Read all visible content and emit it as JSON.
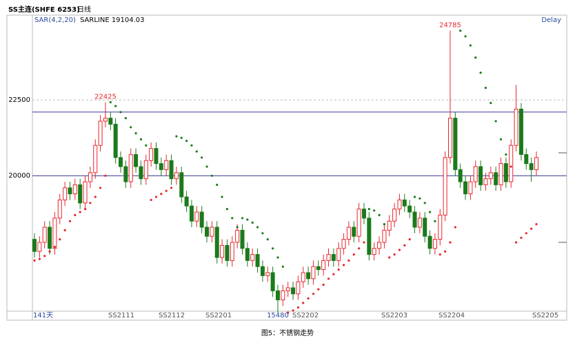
{
  "chart_data": {
    "type": "candlestick",
    "symbol": "SS主连(SHFE 6253)",
    "period": "日线",
    "indicator": "SAR(4,2,20)",
    "indicator_value": "SARLINE 19104.03",
    "status": "Delay",
    "bar_count": "141天",
    "contract_labels": [
      "SS2111",
      "SS2112",
      "SS2201",
      "SS2202",
      "SS2203",
      "SS2204",
      "SS2205"
    ],
    "caption": "图5：不锈钢走势",
    "ylim": [
      15300,
      25300
    ],
    "yticks": [
      20000,
      22500
    ],
    "hlines": [
      22100,
      20000
    ],
    "up_color": "#e8242b",
    "down_color": "#1b7a1b",
    "hline_color": "#3a3a9a",
    "open": [
      17900,
      17500,
      17800,
      18300,
      17600,
      18600,
      19200,
      19600,
      19400,
      19700,
      19100,
      19800,
      20100,
      21000,
      21800,
      21900,
      21700,
      20600,
      20300,
      19800,
      20700,
      20300,
      19900,
      20500,
      20900,
      20400,
      20200,
      20500,
      19900,
      20100,
      19300,
      19000,
      18500,
      18800,
      18300,
      18000,
      18300,
      17300,
      17700,
      17200,
      17800,
      18200,
      17600,
      17200,
      17400,
      17000,
      16700,
      16800,
      16200,
      15900,
      16200,
      16300,
      16100,
      16500,
      16800,
      16600,
      17000,
      16900,
      17200,
      17400,
      17200,
      17600,
      17900,
      18300,
      18000,
      18900,
      18600,
      17400,
      17600,
      17800,
      18200,
      18500,
      18900,
      19200,
      19000,
      18800,
      18300,
      18600,
      18000,
      17600,
      17900,
      18700,
      20600,
      21900,
      20200,
      19800,
      19400,
      19800,
      20300,
      19700,
      19900,
      20100,
      19700,
      20400,
      19800,
      21000,
      22200,
      20700,
      20400,
      20200
    ],
    "high": [
      18100,
      18000,
      18500,
      18500,
      18800,
      19400,
      19800,
      19800,
      19900,
      19900,
      20000,
      20300,
      21200,
      22000,
      22425,
      22100,
      21900,
      20800,
      20500,
      20900,
      20900,
      20500,
      20700,
      21100,
      21100,
      20600,
      20700,
      20700,
      20300,
      20300,
      19500,
      19200,
      19000,
      19000,
      18500,
      18500,
      18500,
      17900,
      17900,
      18000,
      18400,
      18400,
      17800,
      17600,
      17600,
      17200,
      17000,
      17000,
      16400,
      16400,
      16500,
      16500,
      16700,
      17000,
      17000,
      17200,
      17200,
      17400,
      17600,
      17600,
      17800,
      18100,
      18500,
      18500,
      19100,
      19100,
      18800,
      17800,
      18000,
      18400,
      18700,
      19100,
      19400,
      19400,
      19200,
      19000,
      18800,
      18800,
      18200,
      18100,
      18900,
      20800,
      24785,
      22100,
      20400,
      20000,
      20000,
      20500,
      20500,
      20100,
      20300,
      20300,
      20600,
      20600,
      21200,
      23000,
      22400,
      20900,
      20600,
      20800
    ],
    "low": [
      17300,
      17300,
      17600,
      17400,
      17400,
      18400,
      19000,
      19200,
      19200,
      18900,
      18900,
      19600,
      19900,
      20800,
      21600,
      21500,
      20400,
      20100,
      19600,
      19600,
      20100,
      19700,
      19700,
      20300,
      20200,
      20000,
      20000,
      19700,
      19700,
      19100,
      18800,
      18300,
      18300,
      18100,
      17800,
      17800,
      17100,
      17100,
      17000,
      17000,
      17600,
      17400,
      17000,
      17000,
      16800,
      16500,
      16500,
      16000,
      15480,
      15700,
      16000,
      15900,
      15900,
      16300,
      16400,
      16400,
      16700,
      16700,
      17000,
      17000,
      17000,
      17400,
      17700,
      17800,
      17800,
      18400,
      17200,
      17200,
      17400,
      17600,
      18000,
      18300,
      18700,
      18800,
      18600,
      18100,
      18100,
      17800,
      17400,
      17400,
      17700,
      18500,
      20400,
      20000,
      19600,
      19200,
      19200,
      19600,
      19500,
      19500,
      19700,
      19500,
      19500,
      19600,
      19600,
      20800,
      20500,
      20200,
      19800,
      20000
    ],
    "close": [
      17500,
      17800,
      18300,
      17600,
      18600,
      19200,
      19600,
      19400,
      19700,
      19100,
      19800,
      20100,
      21000,
      21800,
      21900,
      21700,
      20600,
      20300,
      19800,
      20700,
      20300,
      19900,
      20500,
      20900,
      20400,
      20200,
      20500,
      19900,
      20100,
      19300,
      19000,
      18500,
      18800,
      18300,
      18000,
      18300,
      17300,
      17700,
      17200,
      17800,
      18200,
      17600,
      17200,
      17400,
      17000,
      16700,
      16800,
      16200,
      15900,
      16200,
      16300,
      16100,
      16500,
      16800,
      16600,
      17000,
      16900,
      17200,
      17400,
      17200,
      17600,
      17900,
      18300,
      18000,
      18900,
      18600,
      17400,
      17600,
      17800,
      18200,
      18500,
      18900,
      19200,
      19000,
      18800,
      18300,
      18600,
      18000,
      17600,
      17900,
      18700,
      20600,
      21900,
      20200,
      19800,
      19400,
      19800,
      20300,
      19700,
      19900,
      20100,
      19700,
      20400,
      19800,
      21000,
      22200,
      20700,
      20400,
      20200,
      20600
    ],
    "sar": [
      17200,
      17250,
      17350,
      17500,
      17650,
      17900,
      18200,
      18500,
      18700,
      18800,
      18900,
      19100,
      19300,
      19600,
      20000,
      22425,
      22300,
      22100,
      21900,
      21600,
      21400,
      21200,
      21000,
      19200,
      19300,
      19400,
      19500,
      19600,
      21300,
      21250,
      21150,
      21000,
      20800,
      20600,
      20300,
      20000,
      19700,
      19300,
      18900,
      18600,
      18300,
      18600,
      18550,
      18450,
      18300,
      18100,
      17900,
      17600,
      17300,
      17000,
      15480,
      15550,
      15650,
      15800,
      15950,
      16100,
      16250,
      16400,
      16600,
      16750,
      16900,
      17050,
      17200,
      17400,
      17600,
      17800,
      18900,
      18850,
      18700,
      18400,
      17300,
      17400,
      17550,
      17700,
      17900,
      19300,
      19250,
      19100,
      18800,
      18500,
      17400,
      17500,
      17800,
      18300,
      24785,
      24600,
      24300,
      23900,
      23400,
      22900,
      22400,
      21800,
      21200,
      20700,
      20300,
      17800,
      17950,
      18100,
      18250,
      18400
    ]
  }
}
